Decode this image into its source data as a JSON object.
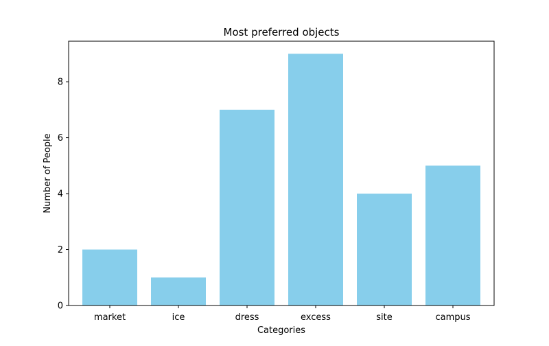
{
  "chart_data": {
    "type": "bar",
    "title": "Most preferred objects",
    "xlabel": "Categories",
    "ylabel": "Number of People",
    "categories": [
      "market",
      "ice",
      "dress",
      "excess",
      "site",
      "campus"
    ],
    "values": [
      2,
      1,
      7,
      9,
      4,
      5
    ],
    "ylim": [
      0,
      9.45
    ],
    "yticks": [
      0,
      2,
      4,
      6,
      8
    ],
    "bar_color": "#87CEEB",
    "grid": false,
    "legend": "none"
  }
}
